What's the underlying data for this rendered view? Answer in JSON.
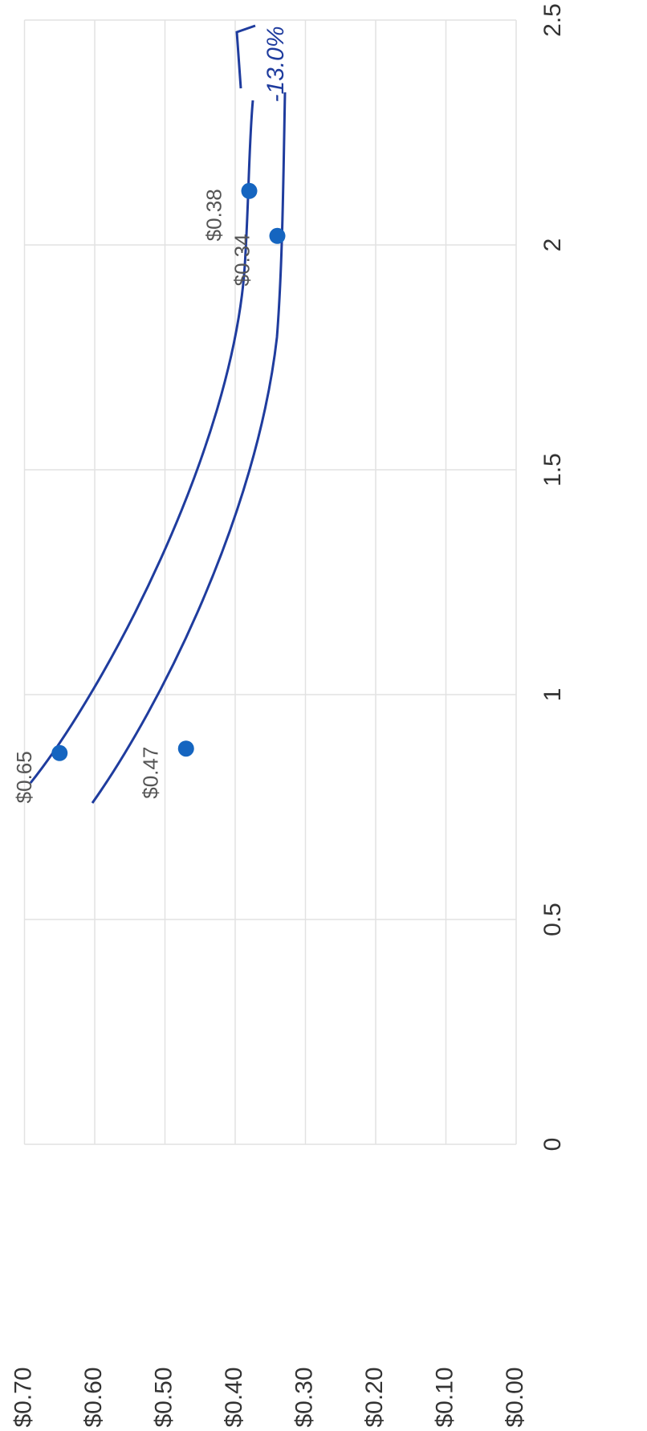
{
  "chart_data": {
    "type": "scatter",
    "x": [
      0.87,
      0.88,
      2.12,
      2.02
    ],
    "values": [
      0.65,
      0.47,
      0.38,
      0.34
    ],
    "value_labels": [
      "$0.65",
      "$0.47",
      "$0.38",
      "$0.34"
    ],
    "color": "#1565c0",
    "xlim": [
      0,
      2.5
    ],
    "xticks": [
      0,
      0.5,
      1,
      1.5,
      2,
      2.5
    ],
    "ylim": [
      0,
      0.7
    ],
    "yticks": [
      {
        "value": 0,
        "label": "$0.00"
      },
      {
        "value": 0.1,
        "label": "$0.10"
      },
      {
        "value": 0.2,
        "label": "$0.20"
      },
      {
        "value": 0.3,
        "label": "$0.30"
      },
      {
        "value": 0.4,
        "label": "$0.40"
      },
      {
        "value": 0.5,
        "label": "$0.50"
      },
      {
        "value": 0.6,
        "label": "$0.60"
      },
      {
        "value": 0.7,
        "label": "$0.70"
      }
    ],
    "grid": true,
    "annotations": [
      "-13.0%"
    ]
  }
}
